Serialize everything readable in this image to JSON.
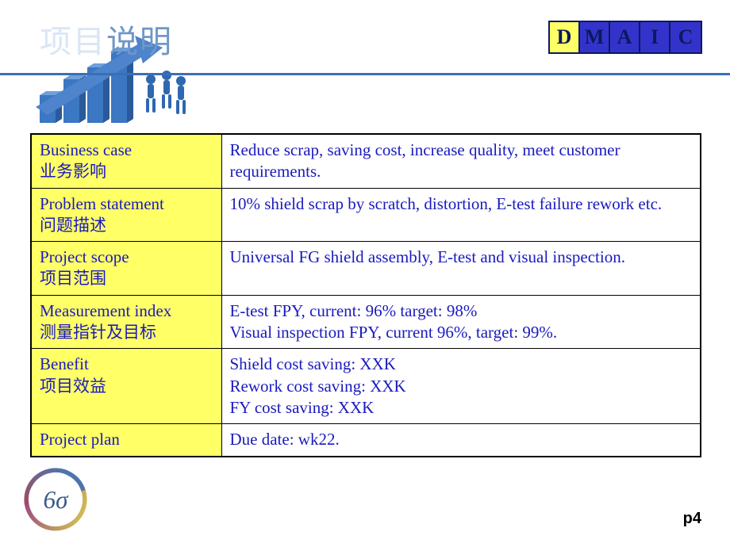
{
  "header": {
    "title_light": "项目",
    "title_dark": "说明",
    "dmaic": {
      "letters": [
        "D",
        "M",
        "A",
        "I",
        "C"
      ],
      "highlight_index": 0,
      "highlight_color": "#ffff66",
      "other_color": "#3333cc",
      "border_color": "#0a1a5c"
    },
    "line_color": "#3b6fb5"
  },
  "table": {
    "label_bg": "#ffff66",
    "text_color": "#1a1abf",
    "border_color": "#000000",
    "rows": [
      {
        "label_en": "Business case",
        "label_zh": "业务影响",
        "value": "Reduce scrap, saving cost, increase quality, meet customer requirements."
      },
      {
        "label_en": "Problem statement",
        "label_zh": "问题描述",
        "value": "10% shield scrap by scratch, distortion, E-test failure rework etc."
      },
      {
        "label_en": "Project scope",
        "label_zh": "项目范围",
        "value": "Universal FG shield assembly, E-test and visual inspection."
      },
      {
        "label_en": "Measurement index",
        "label_zh": "测量指针及目标",
        "value": "E-test FPY, current: 96% target: 98%\nVisual inspection FPY, current 96%, target: 99%."
      },
      {
        "label_en": "Benefit",
        "label_zh": "项目效益",
        "value": "Shield cost saving: XXK\nRework cost saving: XXK\nFY cost saving: XXK"
      },
      {
        "label_en": "Project plan",
        "label_zh": "",
        "value": "Due date: wk22."
      }
    ]
  },
  "footer": {
    "page_number": "p4",
    "six_sigma_label": "6σ"
  },
  "art_colors": {
    "bar": "#3b77c2",
    "bar_light": "#6fa0da",
    "figure": "#2f67b0"
  }
}
